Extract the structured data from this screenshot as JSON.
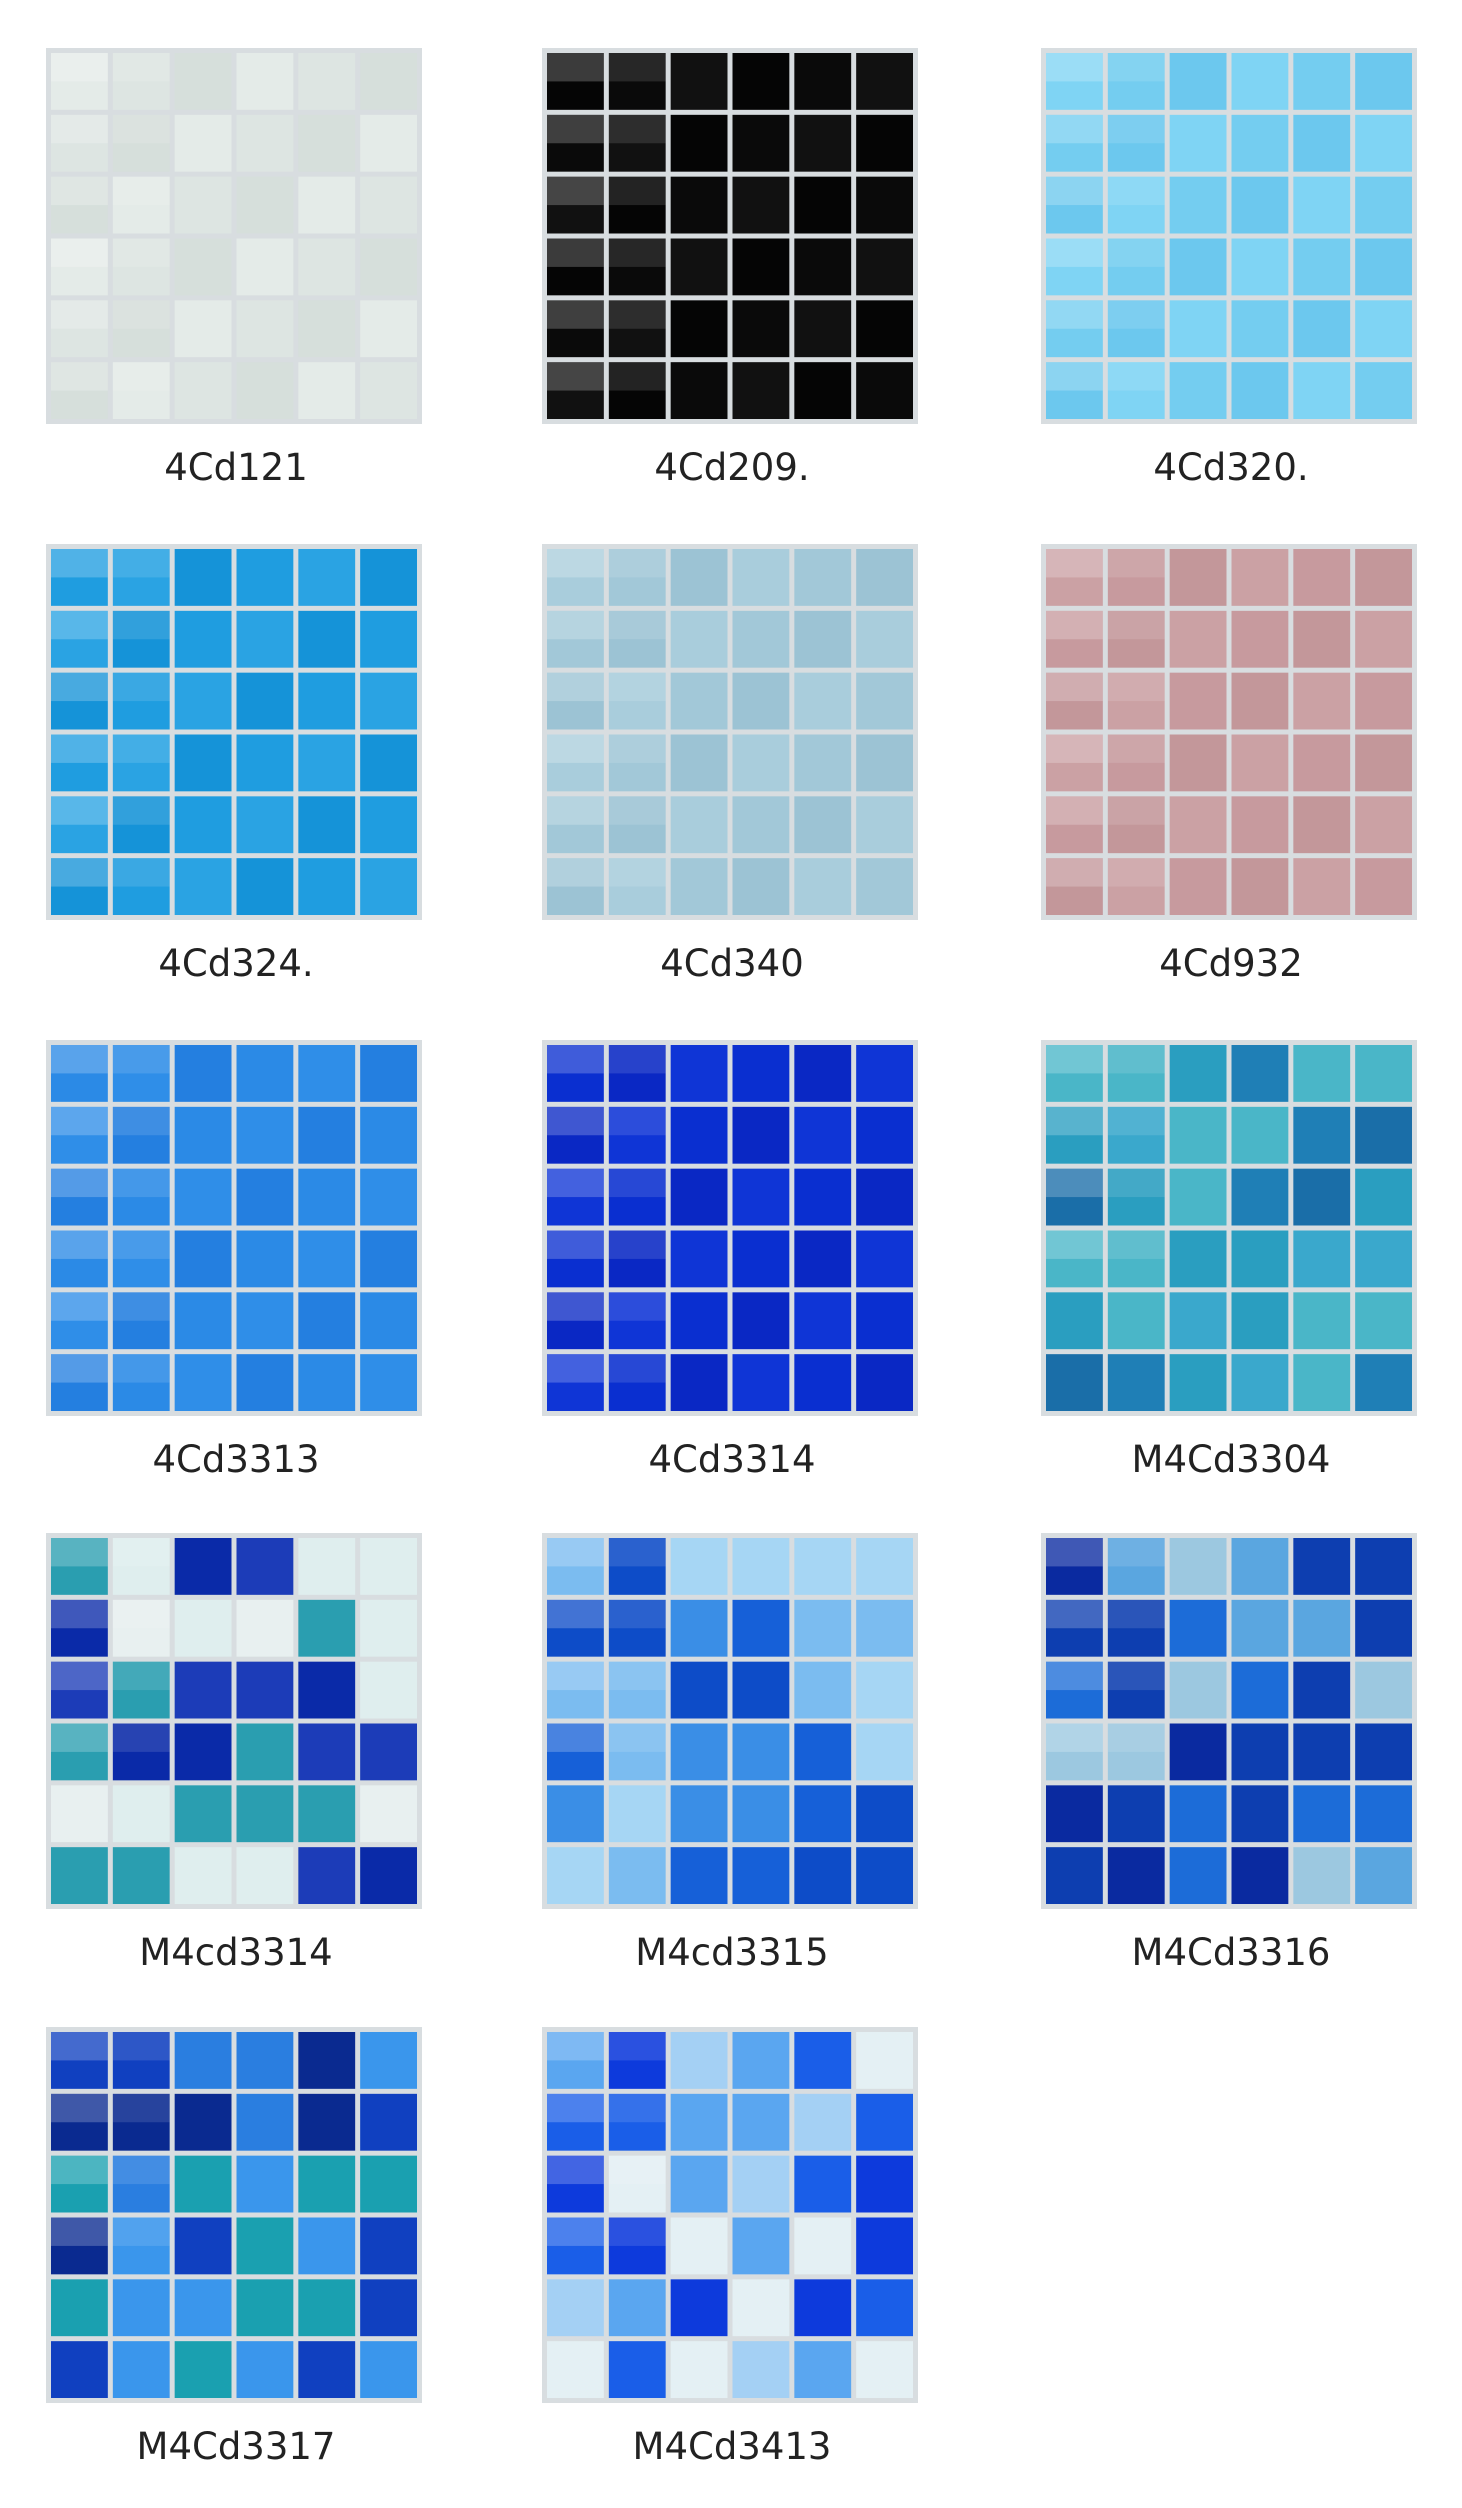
{
  "products": [
    {
      "label": "4Cd121"
    },
    {
      "label": "4Cd209."
    },
    {
      "label": "4Cd320."
    },
    {
      "label": "4Cd324."
    },
    {
      "label": "4Cd340"
    },
    {
      "label": "4Cd932"
    },
    {
      "label": "4Cd3313"
    },
    {
      "label": "4Cd3314"
    },
    {
      "label": "M4Cd3304"
    },
    {
      "label": "M4cd3314"
    },
    {
      "label": "M4cd3315"
    },
    {
      "label": "M4Cd3316"
    },
    {
      "label": "M4Cd3317"
    },
    {
      "label": "M4Cd3413"
    }
  ]
}
